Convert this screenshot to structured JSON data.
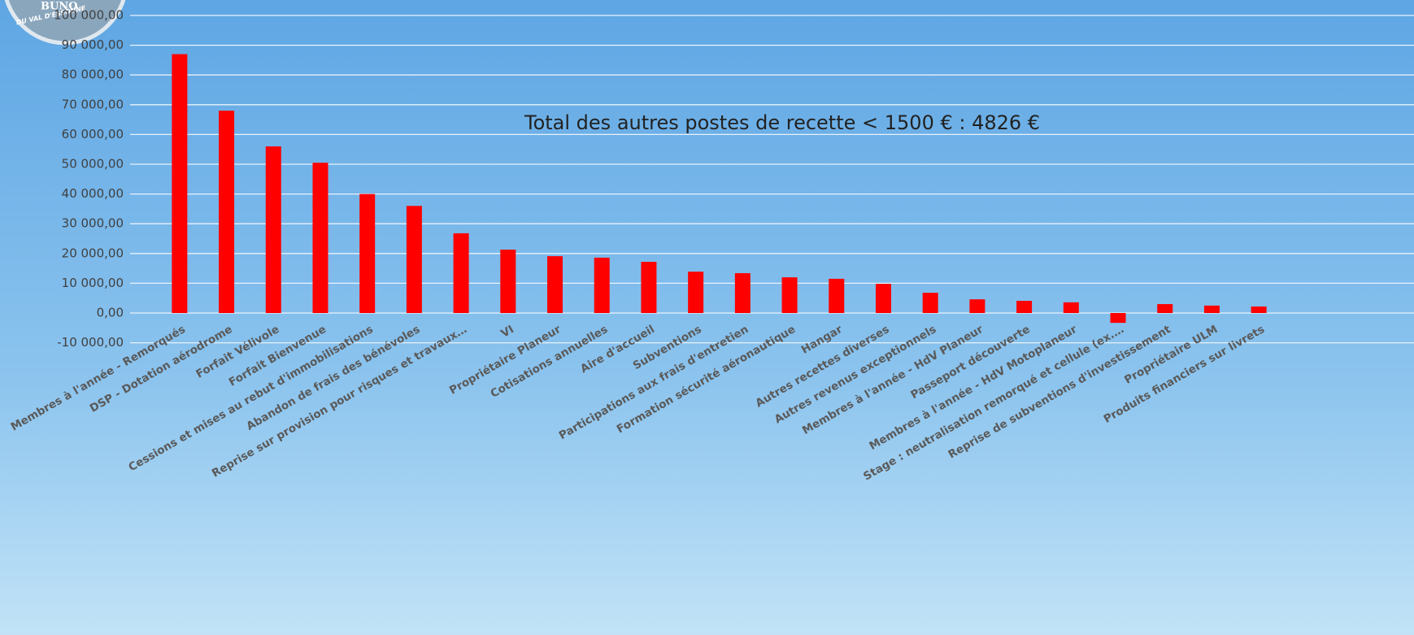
{
  "logo": {
    "name": "BUNO",
    "place": "DU VAL D'ESSONNE"
  },
  "chart_data": {
    "type": "bar",
    "annotation": "Total des autres postes de recette < 1500 € : 4826 €",
    "categories": [
      "Membres à l'année - Remorqués",
      "DSP - Dotation aérodrome",
      "Forfait Vélivole",
      "Forfait Bienvenue",
      "Cessions et mises au rebut d'immobilisations",
      "Abandon de frais des bénévoles",
      "Reprise sur provision pour risques et travaux…",
      "VI",
      "Propriétaire Planeur",
      "Cotisations annuelles",
      "Aire d'accueil",
      "Subventions",
      "Participations aux frais d'entretien",
      "Formation sécurité aéronautique",
      "Hangar",
      "Autres recettes diverses",
      "Autres revenus exceptionnels",
      "Membres à l'année - HdV Planeur",
      "Passeport découverte",
      "Membres à l'année - HdV Motoplaneur",
      "Stage : neutralisation remorqué et cellule (ex.…",
      "Reprise de subventions d'investissement",
      "Propriétaire ULM",
      "Produits financiers sur livrets"
    ],
    "values": [
      87000,
      68000,
      56000,
      50500,
      40000,
      36000,
      26800,
      21300,
      19100,
      18600,
      17200,
      13900,
      13400,
      12000,
      11500,
      9800,
      6800,
      4600,
      4100,
      3600,
      -3300,
      3000,
      2500,
      2200
    ],
    "color": "#ff0000",
    "ylim": [
      -10000,
      100000
    ],
    "yticks": [
      {
        "value": -10000,
        "label": "-10 000,00"
      },
      {
        "value": 0,
        "label": "0,00"
      },
      {
        "value": 10000,
        "label": "10 000,00"
      },
      {
        "value": 20000,
        "label": "20 000,00"
      },
      {
        "value": 30000,
        "label": "30 000,00"
      },
      {
        "value": 40000,
        "label": "40 000,00"
      },
      {
        "value": 50000,
        "label": "50 000,00"
      },
      {
        "value": 60000,
        "label": "60 000,00"
      },
      {
        "value": 70000,
        "label": "70 000,00"
      },
      {
        "value": 80000,
        "label": "80 000,00"
      },
      {
        "value": 90000,
        "label": "90 000,00"
      },
      {
        "value": 100000,
        "label": "100 000,00"
      }
    ],
    "grid": true
  }
}
